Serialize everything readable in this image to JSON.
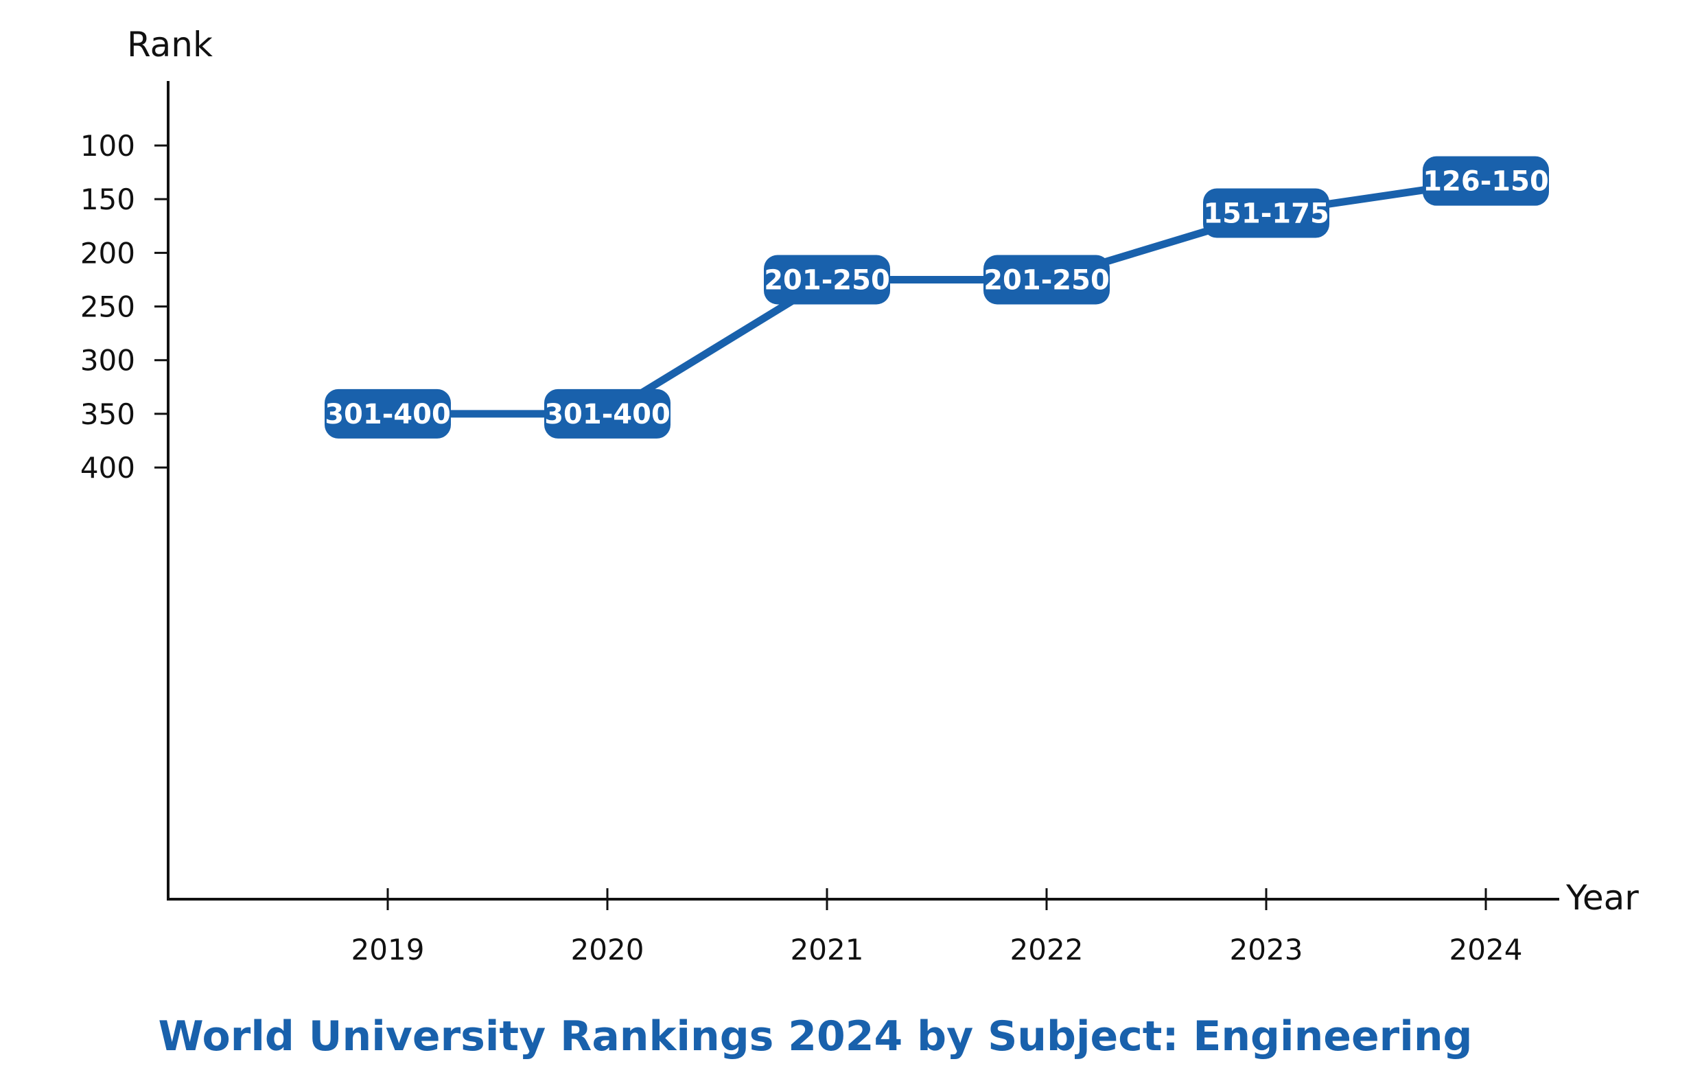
{
  "chart_data": {
    "type": "line",
    "title": "World University Rankings 2024 by Subject: Engineering",
    "xlabel": "Year",
    "ylabel": "Rank",
    "x": [
      "2019",
      "2020",
      "2021",
      "2022",
      "2023",
      "2024"
    ],
    "series": [
      {
        "values": [
          350,
          350,
          225,
          225,
          163,
          133
        ],
        "labels": [
          "301-400",
          "301-400",
          "201-250",
          "201-250",
          "151-175",
          "126-150"
        ]
      }
    ],
    "yticks": [
      100,
      150,
      200,
      250,
      300,
      350,
      400
    ],
    "ylim": [
      70,
      450
    ],
    "y_inverted": true,
    "grid": false,
    "legend": "none",
    "colors": {
      "line": "#1961ac",
      "label_bg": "#1961ac",
      "label_text": "#ffffff",
      "title": "#1961ac",
      "axis": "#111111"
    }
  }
}
